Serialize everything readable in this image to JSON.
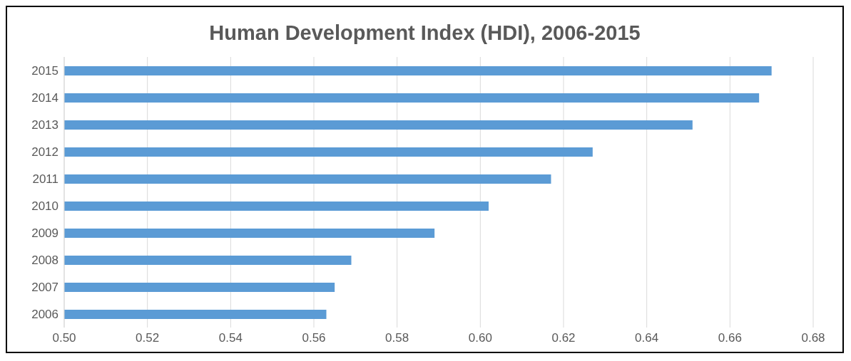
{
  "chart_data": {
    "type": "bar",
    "orientation": "horizontal",
    "title": "Human Development Index (HDI), 2006-2015",
    "categories": [
      "2015",
      "2014",
      "2013",
      "2012",
      "2011",
      "2010",
      "2009",
      "2008",
      "2007",
      "2006"
    ],
    "values": [
      0.67,
      0.667,
      0.651,
      0.627,
      0.617,
      0.602,
      0.589,
      0.569,
      0.565,
      0.563
    ],
    "color": "#5b9bd5",
    "xlim": [
      0.5,
      0.68
    ],
    "xticks": [
      {
        "value": 0.5,
        "label": "0.50"
      },
      {
        "value": 0.52,
        "label": "0.52"
      },
      {
        "value": 0.54,
        "label": "0.54"
      },
      {
        "value": 0.56,
        "label": "0.56"
      },
      {
        "value": 0.58,
        "label": "0.58"
      },
      {
        "value": 0.6,
        "label": "0.60"
      },
      {
        "value": 0.62,
        "label": "0.62"
      },
      {
        "value": 0.64,
        "label": "0.64"
      },
      {
        "value": 0.66,
        "label": "0.66"
      },
      {
        "value": 0.68,
        "label": "0.68"
      }
    ],
    "grid": "x"
  }
}
